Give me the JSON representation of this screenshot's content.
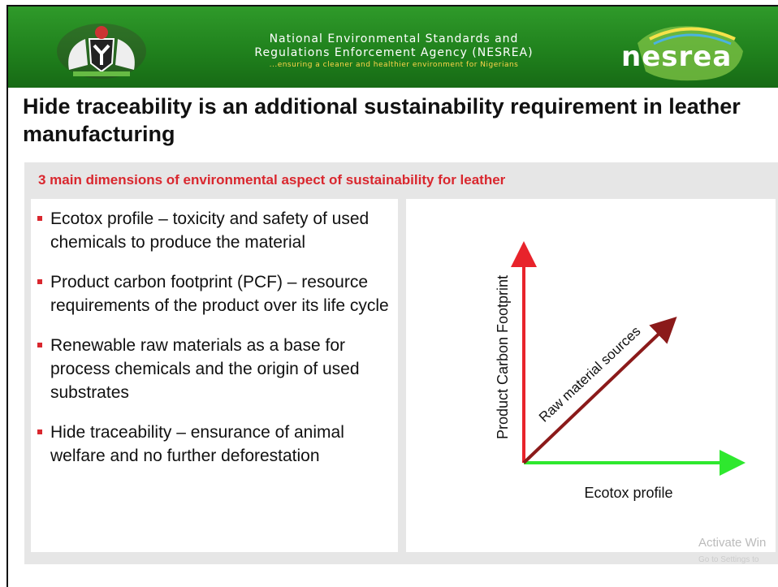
{
  "header": {
    "agency_line1": "National Environmental Standards and",
    "agency_line2": "Regulations Enforcement Agency (NESREA)",
    "tagline": "...ensuring a cleaner and healthier environment for Nigerians",
    "logo_text": "nesrea"
  },
  "title": "Hide traceability is an additional sustainability requirement in leather manufacturing",
  "subtitle": "3 main dimensions of environmental aspect of sustainability for leather",
  "bullets": [
    "Ecotox profile – toxicity and safety of used chemicals to produce the material",
    "Product carbon footprint (PCF) – resource requirements of the product over its life cycle",
    "Renewable raw materials as a base for process chemicals and the origin of used substrates",
    "Hide traceability – ensurance of animal welfare and no further deforestation"
  ],
  "diagram": {
    "y_axis_label": "Product Carbon Footprint",
    "x_axis_label": "Ecotox profile",
    "diagonal_label": "Raw material sources"
  },
  "watermark": {
    "line1": "Activate Win",
    "line2": "Go to Settings to"
  }
}
